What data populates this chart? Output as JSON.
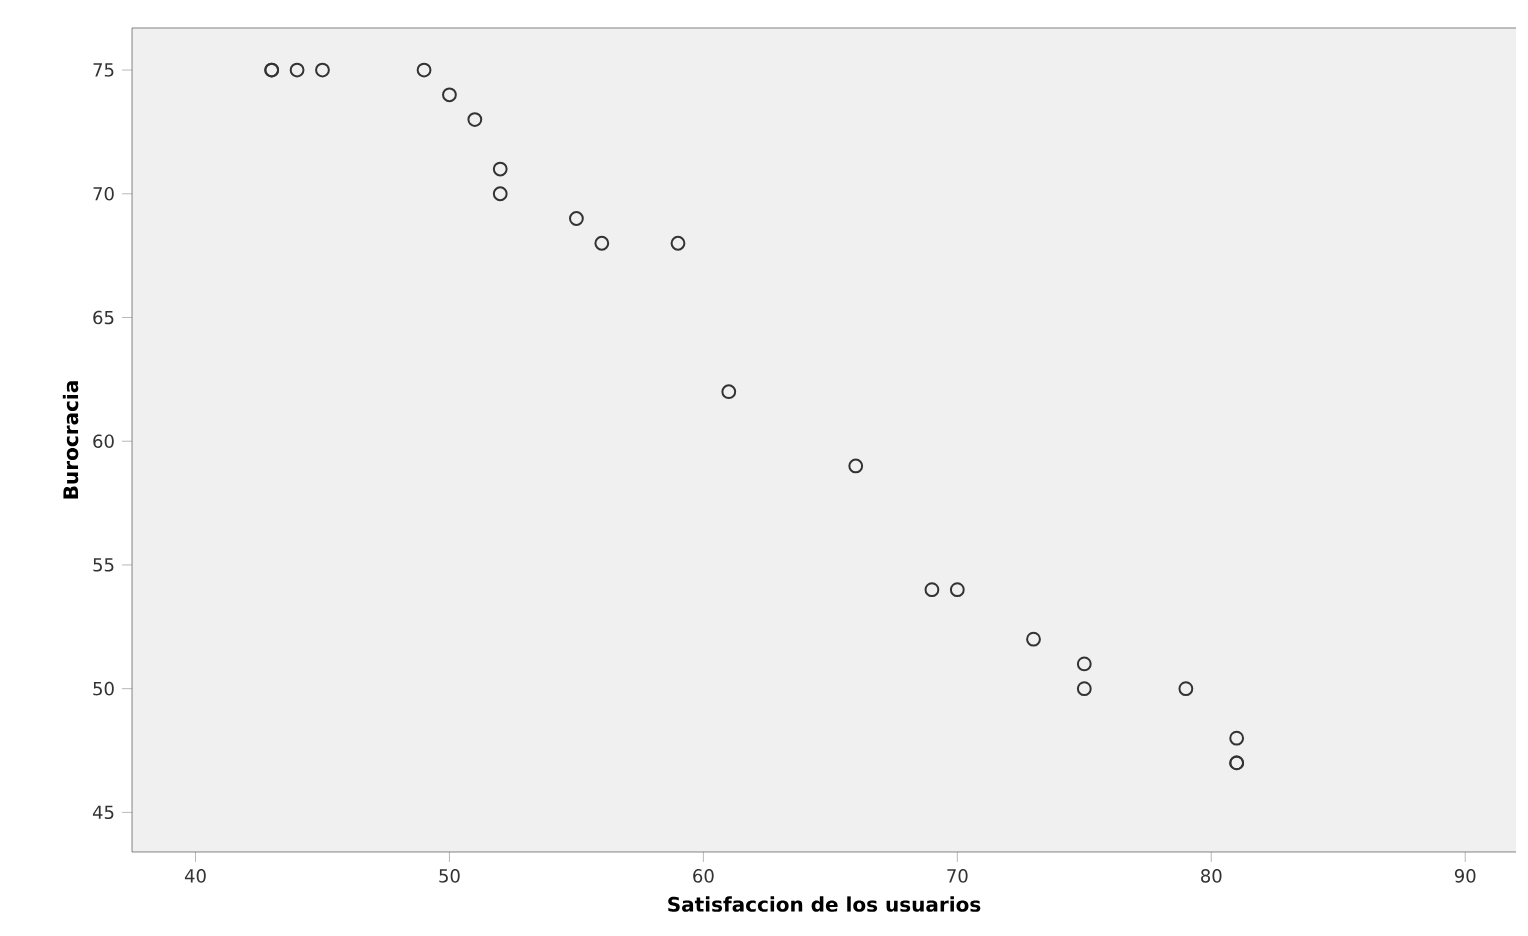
{
  "chart_data": {
    "type": "scatter",
    "xlabel": "Satisfaccion de los usuarios",
    "ylabel": "Burocracia",
    "x": [
      43,
      43,
      44,
      45,
      49,
      50,
      51,
      52,
      52,
      55,
      56,
      59,
      61,
      66,
      69,
      70,
      73,
      75,
      75,
      79,
      81,
      81,
      81
    ],
    "values": [
      75,
      75,
      75,
      75,
      75,
      74,
      73,
      71,
      70,
      69,
      68,
      68,
      62,
      59,
      54,
      54,
      52,
      51,
      50,
      50,
      48,
      47,
      47
    ],
    "color": "#333333",
    "marker": "circle",
    "xlim": [
      37.5,
      92
    ],
    "ylim": [
      43.4,
      76.7
    ],
    "xticks": [
      40,
      50,
      60,
      70,
      80,
      90
    ],
    "yticks": [
      45,
      50,
      55,
      60,
      65,
      70,
      75
    ],
    "grid": false
  }
}
